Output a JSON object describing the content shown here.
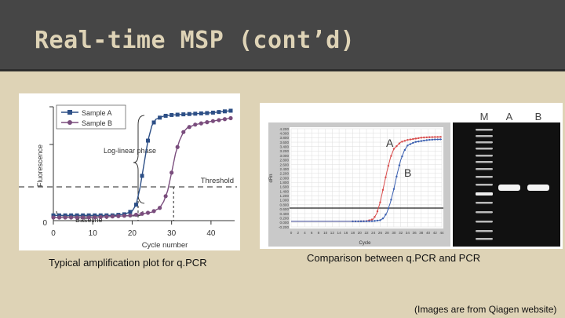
{
  "slide": {
    "title": "Real-time MSP (cont’d)",
    "caption_left": "Typical amplification plot for q.PCR",
    "caption_right": "Comparison between q.PCR and PCR",
    "footnote": "(Images are from Qiagen website)"
  },
  "left_plot": {
    "ylabel": "Fluorescence",
    "xlabel": "Cycle number",
    "legend": [
      "Sample A",
      "Sample B"
    ],
    "annotations": {
      "phase": "Log-linear phase",
      "threshold": "Threshold",
      "baseline": "Baseline"
    },
    "x_ticks": [
      "0",
      "10",
      "20",
      "30",
      "40"
    ],
    "y_zero": "0"
  },
  "middle_plot": {
    "ylabel": "dRn",
    "xlabel": "Cycle",
    "y_ticks": [
      "4.200",
      "4.000",
      "3.800",
      "3.600",
      "3.400",
      "3.200",
      "3.000",
      "2.800",
      "2.600",
      "2.400",
      "2.200",
      "2.000",
      "1.800",
      "1.600",
      "1.400",
      "1.200",
      "1.000",
      "0.800",
      "0.600",
      "0.400",
      "0.200",
      "0.000",
      "-0.200"
    ],
    "x_ticks": [
      "0",
      "2",
      "4",
      "6",
      "8",
      "10",
      "12",
      "14",
      "16",
      "18",
      "20",
      "22",
      "24",
      "26",
      "28",
      "30",
      "32",
      "34",
      "36",
      "38",
      "40",
      "42",
      "44"
    ],
    "curve_labels": [
      "A",
      "B"
    ]
  },
  "gel": {
    "lanes": [
      "M",
      "A",
      "B"
    ]
  },
  "colors": {
    "sample_a": "#2d4f86",
    "sample_b": "#7a4d7d",
    "red_curve": "#d84b4b",
    "blue_curve": "#3a5fb0"
  },
  "chart_data": [
    {
      "type": "line",
      "title": "",
      "xlabel": "Cycle number",
      "ylabel": "Fluorescence",
      "xlim": [
        0,
        45
      ],
      "series": [
        {
          "name": "Sample A",
          "x": [
            0,
            5,
            10,
            15,
            18,
            20,
            21,
            22,
            23,
            24,
            25,
            26,
            28,
            30,
            35,
            40,
            45
          ],
          "y": [
            0.02,
            0.02,
            0.02,
            0.02,
            0.03,
            0.06,
            0.12,
            0.28,
            0.5,
            0.72,
            0.86,
            0.92,
            0.95,
            0.96,
            0.97,
            0.98,
            1.0
          ]
        },
        {
          "name": "Sample B",
          "x": [
            0,
            5,
            10,
            15,
            20,
            25,
            27,
            28,
            29,
            30,
            31,
            32,
            33,
            34,
            36,
            40,
            45
          ],
          "y": [
            0.0,
            0.0,
            0.0,
            0.01,
            0.02,
            0.05,
            0.09,
            0.15,
            0.25,
            0.42,
            0.6,
            0.72,
            0.8,
            0.84,
            0.87,
            0.9,
            0.93
          ]
        }
      ]
    },
    {
      "type": "line",
      "title": "",
      "xlabel": "Cycle",
      "ylabel": "dRn",
      "xlim": [
        0,
        44
      ],
      "ylim": [
        -0.2,
        4.2
      ],
      "series": [
        {
          "name": "A",
          "x": [
            0,
            10,
            20,
            22,
            24,
            25,
            26,
            27,
            28,
            29,
            30,
            32,
            34,
            36,
            38,
            40,
            42,
            44
          ],
          "y": [
            0.05,
            0.05,
            0.05,
            0.06,
            0.15,
            0.4,
            0.9,
            1.6,
            2.3,
            2.9,
            3.3,
            3.6,
            3.7,
            3.75,
            3.8,
            3.82,
            3.83,
            3.84
          ]
        },
        {
          "name": "B",
          "x": [
            0,
            10,
            20,
            24,
            26,
            27,
            28,
            29,
            30,
            31,
            32,
            33,
            34,
            36,
            38,
            40,
            42,
            44
          ],
          "y": [
            0.05,
            0.05,
            0.05,
            0.06,
            0.1,
            0.2,
            0.45,
            0.9,
            1.5,
            2.2,
            2.8,
            3.2,
            3.45,
            3.6,
            3.65,
            3.7,
            3.72,
            3.73
          ]
        }
      ]
    }
  ]
}
